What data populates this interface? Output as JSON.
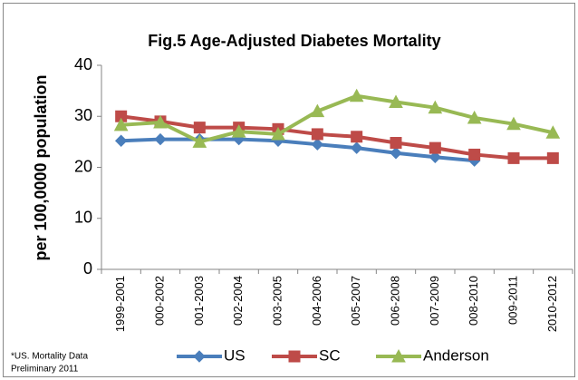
{
  "chart_data": {
    "type": "line",
    "title": "Fig.5  Age-Adjusted Diabetes Mortality",
    "y_label": "per 100,0000 population",
    "categories": [
      "1999-2001",
      "000-2002",
      "001-2003",
      "002-2004",
      "003-2005",
      "004-2006",
      "005-2007",
      "006-2008",
      "007-2009",
      "008-2010",
      "009-2011",
      "2010-2012"
    ],
    "series": [
      {
        "name": "US",
        "color": "#4a7ebb",
        "marker": "diamond",
        "values": [
          25.2,
          25.5,
          25.5,
          25.5,
          25.2,
          24.5,
          23.8,
          22.8,
          22.0,
          21.3,
          null,
          null
        ]
      },
      {
        "name": "SC",
        "color": "#be4b48",
        "marker": "square",
        "values": [
          30,
          29,
          27.8,
          27.8,
          27.5,
          26.5,
          26,
          24.8,
          23.8,
          22.5,
          21.8,
          21.8
        ]
      },
      {
        "name": "Anderson",
        "color": "#98b954",
        "marker": "triangle",
        "values": [
          28.3,
          28.8,
          25,
          27,
          26.5,
          31,
          34,
          32.8,
          31.7,
          29.7,
          28.5,
          26.8
        ]
      }
    ],
    "ylim": [
      0,
      40
    ],
    "yticks": [
      0,
      10,
      20,
      30,
      40
    ],
    "grid": false,
    "note": [
      "*US. Mortality Data",
      "Preliminary 2011"
    ]
  }
}
